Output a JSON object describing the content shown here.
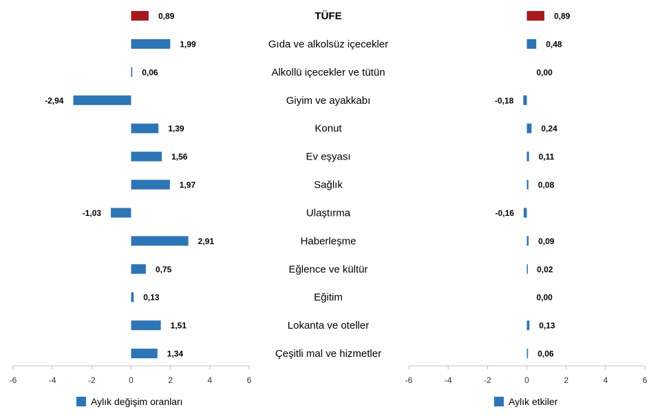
{
  "chart_data": [
    {
      "type": "bar",
      "orientation": "horizontal",
      "legend_label": "Aylık değişim oranları",
      "legend_position": "bottom-left",
      "xlim": [
        -6,
        6
      ],
      "xticks": [
        "-6",
        "-4",
        "-2",
        "0",
        "2",
        "4",
        "6"
      ],
      "categories": [
        "TÜFE",
        "Gıda ve alkolsüz içecekler",
        "Alkollü içecekler ve tütün",
        "Giyim ve ayakkabı",
        "Konut",
        "Ev eşyası",
        "Sağlık",
        "Ulaştırma",
        "Haberleşme",
        "Eğlence ve kültür",
        "Eğitim",
        "Lokanta ve oteller",
        "Çeşitli mal ve hizmetler"
      ],
      "values": [
        0.89,
        1.99,
        0.06,
        -2.94,
        1.39,
        1.56,
        1.97,
        -1.03,
        2.91,
        0.75,
        0.13,
        1.51,
        1.34
      ],
      "value_labels": [
        "0,89",
        "1,99",
        "0,06",
        "-2,94",
        "1,39",
        "1,56",
        "1,97",
        "-1,03",
        "2,91",
        "0,75",
        "0,13",
        "1,51",
        "1,34"
      ]
    },
    {
      "type": "bar",
      "orientation": "horizontal",
      "legend_label": "Aylık etkiler",
      "legend_position": "bottom-left",
      "xlim": [
        -6,
        6
      ],
      "xticks": [
        "-6",
        "-4",
        "-2",
        "0",
        "2",
        "4",
        "6"
      ],
      "categories": [
        "TÜFE",
        "Gıda ve alkolsüz içecekler",
        "Alkollü içecekler ve tütün",
        "Giyim ve ayakkabı",
        "Konut",
        "Ev eşyası",
        "Sağlık",
        "Ulaştırma",
        "Haberleşme",
        "Eğlence ve kültür",
        "Eğitim",
        "Lokanta ve oteller",
        "Çeşitli mal ve hizmetler"
      ],
      "values": [
        0.89,
        0.48,
        0.0,
        -0.18,
        0.24,
        0.11,
        0.08,
        -0.16,
        0.09,
        0.02,
        0.0,
        0.13,
        0.06
      ],
      "value_labels": [
        "0,89",
        "0,48",
        "0,00",
        "-0,18",
        "0,24",
        "0,11",
        "0,08",
        "-0,16",
        "0,09",
        "0,02",
        "0,00",
        "0,13",
        "0,06"
      ]
    }
  ],
  "colors": {
    "highlight_bar": "#A6191E",
    "series_bar": "#2E75B6",
    "axis": "#BFBFBF"
  },
  "highlight_category_index": 0
}
